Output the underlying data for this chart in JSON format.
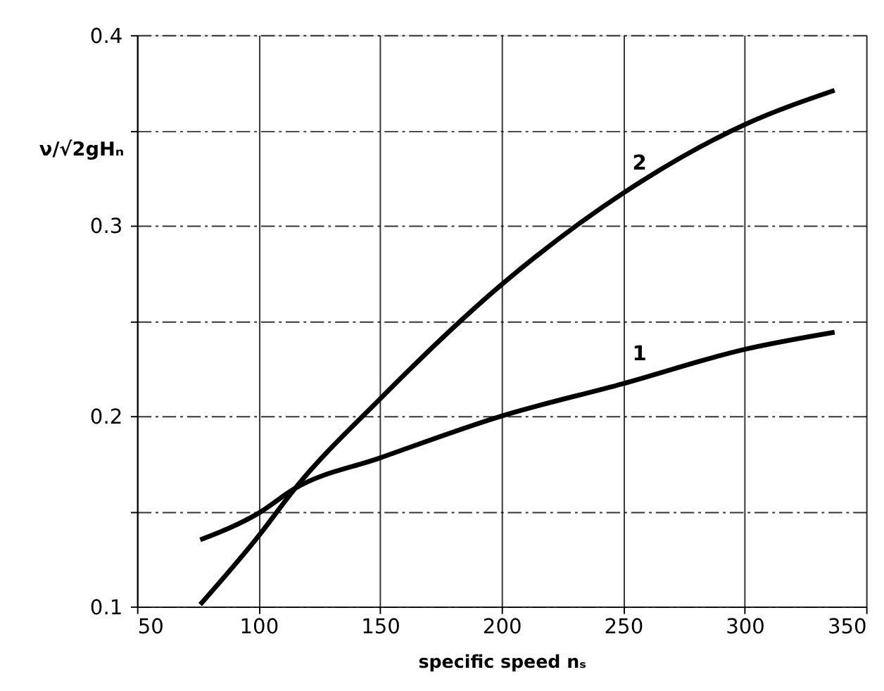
{
  "chart_data": {
    "type": "line",
    "xlabel": "specific speed nₛ",
    "ylabel": "ν/√2gHₙ",
    "xlim": [
      50,
      350
    ],
    "ylim": [
      0.1,
      0.4
    ],
    "xticks": [
      50,
      100,
      150,
      200,
      250,
      300,
      350
    ],
    "yticks": [
      0.1,
      {
        "value": 0.15,
        "label": null
      },
      0.2,
      {
        "value": 0.25,
        "label": null
      },
      0.3,
      {
        "value": 0.35,
        "label": null
      },
      0.4
    ],
    "grid": true,
    "line_style": "solid",
    "marker": "none",
    "series": [
      {
        "name": "1",
        "color": "#000000",
        "x": [
          76,
          100,
          115,
          150,
          200,
          250,
          300,
          337
        ],
        "values": [
          0.135,
          0.149,
          0.162,
          0.178,
          0.2,
          0.217,
          0.235,
          0.244
        ]
      },
      {
        "name": "2",
        "color": "#000000",
        "x": [
          76,
          100,
          115,
          150,
          200,
          250,
          300,
          337
        ],
        "values": [
          0.101,
          0.137,
          0.162,
          0.209,
          0.269,
          0.317,
          0.353,
          0.371
        ]
      }
    ]
  }
}
